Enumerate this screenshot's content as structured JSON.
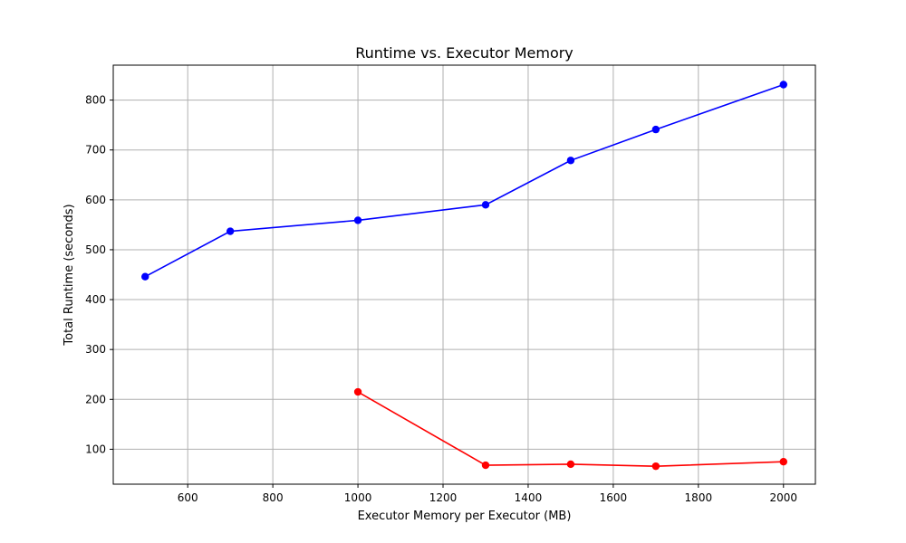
{
  "chart_data": {
    "type": "line",
    "title": "Runtime vs. Executor Memory",
    "xlabel": "Executor Memory per Executor (MB)",
    "ylabel": "Total Runtime (seconds)",
    "xlim": [
      425,
      2075
    ],
    "ylim": [
      30,
      870
    ],
    "xticks": [
      600,
      800,
      1000,
      1200,
      1400,
      1600,
      1800,
      2000
    ],
    "yticks": [
      100,
      200,
      300,
      400,
      500,
      600,
      700,
      800
    ],
    "grid": true,
    "series": [
      {
        "color": "#0000ff",
        "x": [
          500,
          700,
          1000,
          1300,
          1500,
          1700,
          2000
        ],
        "y": [
          446,
          537,
          559,
          590,
          679,
          741,
          831
        ]
      },
      {
        "color": "#ff0000",
        "x": [
          1000,
          1300,
          1500,
          1700,
          2000
        ],
        "y": [
          215,
          68,
          70,
          66,
          75
        ]
      }
    ]
  }
}
